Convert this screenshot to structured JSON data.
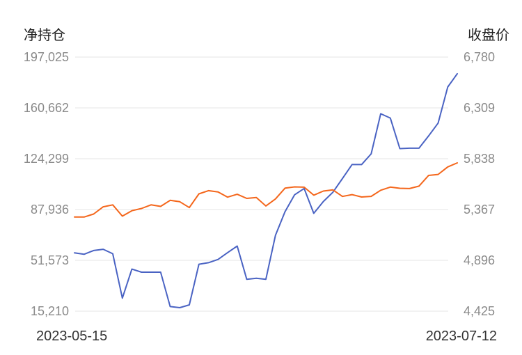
{
  "chart_data": {
    "type": "line",
    "ylabel_left": "净持仓",
    "ylabel_right": "收盘价",
    "y_left_ticks": [
      "197,025",
      "160,662",
      "124,299",
      "87,936",
      "51,573",
      "15,210"
    ],
    "y_right_ticks": [
      "6,780",
      "6,309",
      "5,838",
      "5,367",
      "4,896",
      "4,425"
    ],
    "x_tick_labels": [
      "2023-05-15",
      "2023-07-12"
    ],
    "ylim_left": [
      15210,
      197025
    ],
    "ylim_right": [
      4425,
      6780
    ],
    "grid": true,
    "series": [
      {
        "axis": "left",
        "color": "#4a63c3",
        "values": [
          56900,
          55900,
          58600,
          59500,
          56300,
          24500,
          45300,
          43100,
          43100,
          43100,
          18500,
          17700,
          19700,
          48800,
          49900,
          52200,
          57100,
          61800,
          38000,
          38700,
          38000,
          69500,
          86400,
          98500,
          103000,
          85200,
          93600,
          100300,
          110100,
          120100,
          120100,
          127800,
          156500,
          153400,
          131500,
          131800,
          131800,
          140600,
          149800,
          175600,
          185100
        ]
      },
      {
        "axis": "right",
        "color": "#f4661b",
        "values": [
          5298,
          5297,
          5325,
          5392,
          5410,
          5306,
          5356,
          5377,
          5410,
          5396,
          5452,
          5439,
          5385,
          5512,
          5542,
          5530,
          5482,
          5508,
          5470,
          5478,
          5400,
          5465,
          5565,
          5577,
          5574,
          5500,
          5538,
          5549,
          5488,
          5505,
          5483,
          5489,
          5546,
          5575,
          5564,
          5561,
          5584,
          5683,
          5692,
          5762,
          5799
        ]
      }
    ]
  }
}
